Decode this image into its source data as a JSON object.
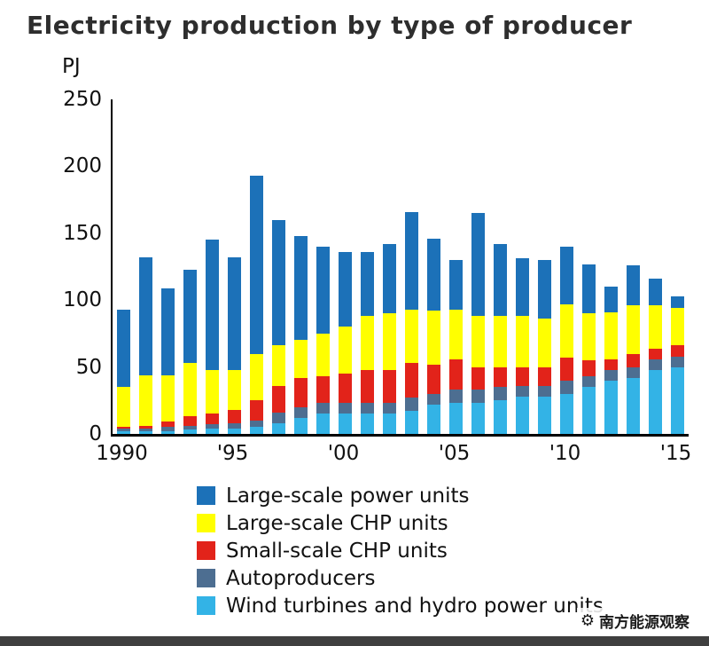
{
  "title": "Electricity production by type of producer",
  "y_axis": {
    "unit": "PJ",
    "ticks": [
      250,
      200,
      150,
      100,
      50,
      0
    ]
  },
  "x_axis": {
    "ticks": [
      {
        "label": "1990",
        "index": 0
      },
      {
        "label": "'95",
        "index": 5
      },
      {
        "label": "'00",
        "index": 10
      },
      {
        "label": "'05",
        "index": 15
      },
      {
        "label": "'10",
        "index": 20
      },
      {
        "label": "'15",
        "index": 25
      }
    ]
  },
  "watermark": {
    "text": "南方能源观察"
  },
  "colors": {
    "large_power": "#1c71b8",
    "large_chp": "#ffff00",
    "small_chp": "#e2231a",
    "autoproducers": "#4d6e91",
    "wind_hydro": "#33b3e6",
    "bottom_bar": "#3f3f3f"
  },
  "chart_data": {
    "type": "bar",
    "stacked": true,
    "stack_order": "bottom-to-top",
    "title": "Electricity production by type of producer",
    "ylabel": "PJ",
    "ylim": [
      0,
      250
    ],
    "grid": false,
    "legend_position": "bottom-left",
    "categories": [
      1990,
      1991,
      1992,
      1993,
      1994,
      1995,
      1996,
      1997,
      1998,
      1999,
      2000,
      2001,
      2002,
      2003,
      2004,
      2005,
      2006,
      2007,
      2008,
      2009,
      2010,
      2011,
      2012,
      2013,
      2014,
      2015
    ],
    "series": [
      {
        "name": "Wind turbines and hydro power units",
        "color": "#33b3e6",
        "values": [
          2,
          2,
          2,
          3,
          4,
          4,
          5,
          8,
          12,
          15,
          15,
          15,
          15,
          17,
          22,
          23,
          23,
          25,
          28,
          28,
          30,
          35,
          40,
          42,
          48,
          50
        ]
      },
      {
        "name": "Autoproducers",
        "color": "#4d6e91",
        "values": [
          2,
          2,
          3,
          3,
          3,
          4,
          5,
          8,
          8,
          8,
          8,
          8,
          8,
          10,
          8,
          10,
          10,
          10,
          8,
          8,
          10,
          8,
          8,
          8,
          8,
          8
        ]
      },
      {
        "name": "Small-scale CHP units",
        "color": "#e2231a",
        "values": [
          1,
          2,
          4,
          7,
          8,
          10,
          15,
          20,
          22,
          20,
          22,
          25,
          25,
          26,
          22,
          23,
          17,
          15,
          14,
          14,
          17,
          12,
          8,
          10,
          8,
          8
        ]
      },
      {
        "name": "Large-scale CHP units",
        "color": "#ffff00",
        "values": [
          30,
          38,
          35,
          40,
          33,
          30,
          35,
          30,
          28,
          32,
          35,
          40,
          42,
          40,
          40,
          37,
          38,
          38,
          38,
          36,
          40,
          35,
          35,
          36,
          32,
          28
        ]
      },
      {
        "name": "Large-scale power units",
        "color": "#1c71b8",
        "values": [
          58,
          88,
          65,
          70,
          97,
          84,
          133,
          94,
          78,
          65,
          56,
          48,
          52,
          73,
          54,
          37,
          77,
          54,
          43,
          44,
          43,
          37,
          19,
          30,
          20,
          9
        ]
      }
    ]
  }
}
